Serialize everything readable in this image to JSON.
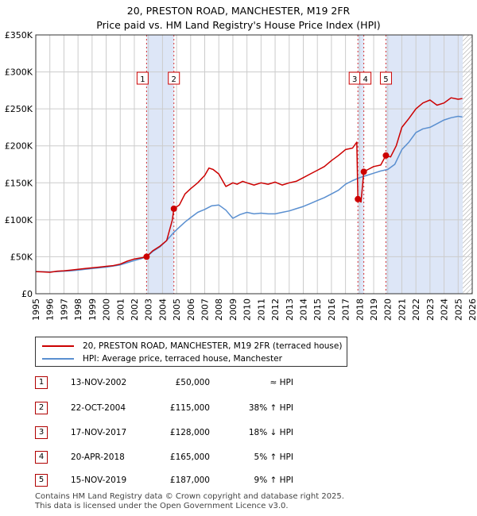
{
  "title_line1": "20, PRESTON ROAD, MANCHESTER, M19 2FR",
  "title_line2": "Price paid vs. HM Land Registry's House Price Index (HPI)",
  "colors": {
    "property": "#cc0000",
    "hpi": "#5a8fd0",
    "shade": "#dde6f7",
    "marker": "#cc0000",
    "grid": "#cccccc"
  },
  "legend": {
    "property_label": "20, PRESTON ROAD, MANCHESTER, M19 2FR (terraced house)",
    "hpi_label": "HPI: Average price, terraced house, Manchester"
  },
  "transactions": [
    {
      "num": "1",
      "date": "13-NOV-2002",
      "price": "£50,000",
      "relation": "≈ HPI"
    },
    {
      "num": "2",
      "date": "22-OCT-2004",
      "price": "£115,000",
      "relation": "38% ↑ HPI"
    },
    {
      "num": "3",
      "date": "17-NOV-2017",
      "price": "£128,000",
      "relation": "18% ↓ HPI"
    },
    {
      "num": "4",
      "date": "20-APR-2018",
      "price": "£165,000",
      "relation": "5% ↑ HPI"
    },
    {
      "num": "5",
      "date": "15-NOV-2019",
      "price": "£187,000",
      "relation": "9% ↑ HPI"
    }
  ],
  "footer_line1": "Contains HM Land Registry data © Crown copyright and database right 2025.",
  "footer_line2": "This data is licensed under the Open Government Licence v3.0.",
  "chart_data": {
    "type": "line",
    "title": "20, PRESTON ROAD, MANCHESTER, M19 2FR",
    "subtitle": "Price paid vs. HM Land Registry's House Price Index (HPI)",
    "xlabel": "",
    "ylabel": "",
    "xlim": [
      1995,
      2026
    ],
    "ylim": [
      0,
      350000
    ],
    "x_ticks": [
      1995,
      1996,
      1997,
      1998,
      1999,
      2000,
      2001,
      2002,
      2003,
      2004,
      2005,
      2006,
      2007,
      2008,
      2009,
      2010,
      2011,
      2012,
      2013,
      2014,
      2015,
      2016,
      2017,
      2018,
      2019,
      2020,
      2021,
      2022,
      2023,
      2024,
      2025,
      2026
    ],
    "y_ticks": [
      0,
      50000,
      100000,
      150000,
      200000,
      250000,
      300000,
      350000
    ],
    "y_tick_labels": [
      "£0",
      "£50K",
      "£100K",
      "£150K",
      "£200K",
      "£250K",
      "£300K",
      "£350K"
    ],
    "grid": true,
    "legend_position": "below",
    "shaded_ranges": [
      [
        2002.87,
        2004.81
      ],
      [
        2017.88,
        2018.3
      ],
      [
        2019.87,
        2025.33
      ]
    ],
    "future_hatch_from": 2025.33,
    "series": [
      {
        "name": "20, PRESTON ROAD, MANCHESTER, M19 2FR (terraced house)",
        "x": [
          1995,
          1995.5,
          1996,
          1996.5,
          1997,
          1997.5,
          1998,
          1998.5,
          1999,
          1999.5,
          2000,
          2000.5,
          2001,
          2001.5,
          2002,
          2002.5,
          2002.87,
          2003.3,
          2003.8,
          2004.3,
          2004.7,
          2004.81,
          2005.2,
          2005.6,
          2006,
          2006.5,
          2007,
          2007.3,
          2007.6,
          2008,
          2008.5,
          2009,
          2009.3,
          2009.7,
          2010,
          2010.5,
          2011,
          2011.5,
          2012,
          2012.5,
          2013,
          2013.5,
          2014,
          2014.5,
          2015,
          2015.5,
          2016,
          2016.5,
          2017,
          2017.5,
          2017.8,
          2017.88,
          2018.1,
          2018.3,
          2018.6,
          2019,
          2019.5,
          2019.87,
          2020.2,
          2020.6,
          2021,
          2021.5,
          2022,
          2022.5,
          2023,
          2023.5,
          2024,
          2024.5,
          2025,
          2025.3
        ],
        "values": [
          30000,
          29500,
          29000,
          30500,
          31000,
          32000,
          33000,
          34000,
          35000,
          36000,
          37000,
          38000,
          40000,
          44000,
          47000,
          48500,
          50000,
          58000,
          64000,
          72000,
          100000,
          115000,
          120000,
          135000,
          142000,
          150000,
          160000,
          170000,
          168000,
          162000,
          145000,
          150000,
          148000,
          152000,
          150000,
          147000,
          150000,
          148000,
          151000,
          147000,
          150000,
          152000,
          157000,
          162000,
          167000,
          172000,
          180000,
          187000,
          195000,
          197000,
          205000,
          128000,
          124000,
          165000,
          168000,
          172000,
          174000,
          187000,
          185000,
          200000,
          225000,
          237000,
          250000,
          258000,
          262000,
          255000,
          258000,
          265000,
          263000,
          264000
        ]
      },
      {
        "name": "HPI: Average price, terraced house, Manchester",
        "x": [
          1995,
          1995.5,
          1996,
          1996.5,
          1997,
          1997.5,
          1998,
          1998.5,
          1999,
          1999.5,
          2000,
          2000.5,
          2001,
          2001.5,
          2002,
          2002.5,
          2002.87,
          2003.3,
          2003.8,
          2004.3,
          2004.81,
          2005.2,
          2005.6,
          2006,
          2006.5,
          2007,
          2007.5,
          2008,
          2008.5,
          2009,
          2009.5,
          2010,
          2010.5,
          2011,
          2011.5,
          2012,
          2012.5,
          2013,
          2013.5,
          2014,
          2014.5,
          2015,
          2015.5,
          2016,
          2016.5,
          2017,
          2017.5,
          2018,
          2018.5,
          2019,
          2019.5,
          2020,
          2020.5,
          2021,
          2021.5,
          2022,
          2022.5,
          2023,
          2023.5,
          2024,
          2024.5,
          2025,
          2025.3
        ],
        "values": [
          30000,
          29800,
          29500,
          30000,
          30500,
          31000,
          32000,
          33000,
          34000,
          35000,
          36000,
          37500,
          39000,
          42000,
          45000,
          47500,
          50000,
          57000,
          63000,
          72000,
          83000,
          90000,
          97000,
          103000,
          110000,
          114000,
          119000,
          120000,
          113000,
          102000,
          107000,
          110000,
          108000,
          109000,
          108000,
          108000,
          110000,
          112000,
          115000,
          118000,
          122000,
          126000,
          130000,
          135000,
          140000,
          148000,
          153000,
          157000,
          160000,
          163000,
          166000,
          168000,
          175000,
          195000,
          205000,
          218000,
          223000,
          225000,
          230000,
          235000,
          238000,
          240000,
          239000
        ]
      }
    ],
    "transactions": [
      {
        "label": "1",
        "x": 2002.87,
        "y": 50000
      },
      {
        "label": "2",
        "x": 2004.81,
        "y": 115000
      },
      {
        "label": "3",
        "x": 2017.88,
        "y": 128000
      },
      {
        "label": "4",
        "x": 2018.3,
        "y": 165000
      },
      {
        "label": "5",
        "x": 2019.87,
        "y": 187000
      }
    ]
  }
}
